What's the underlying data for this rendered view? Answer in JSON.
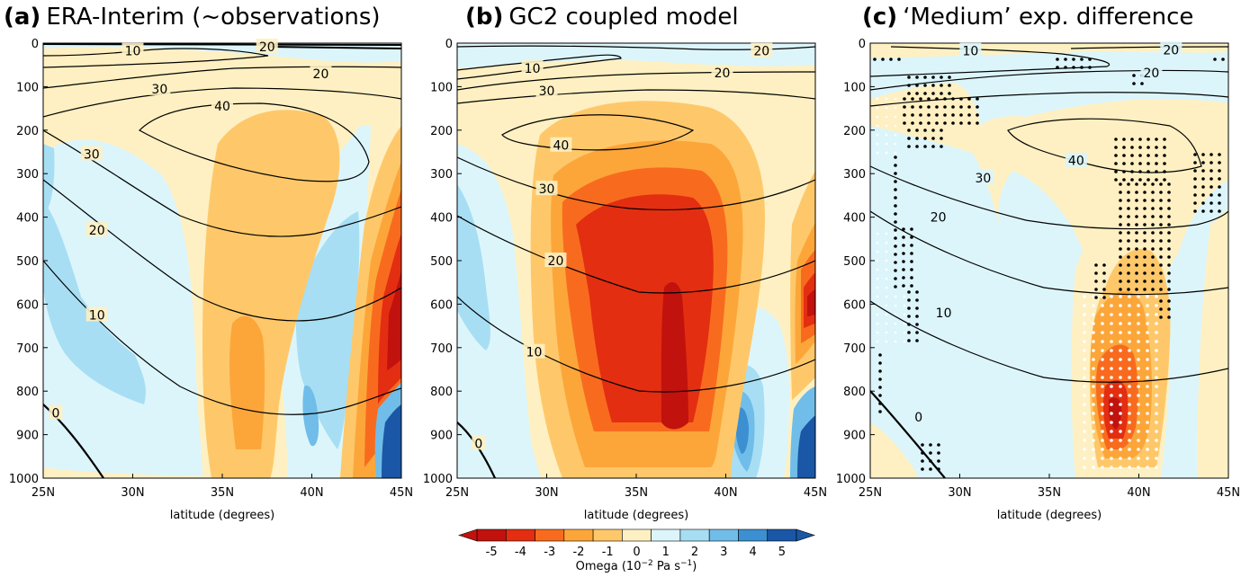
{
  "figure": {
    "panels": [
      {
        "letter": "(a)",
        "title": "ERA-Interim (~observations)",
        "xlabel": "latitude (degrees)"
      },
      {
        "letter": "(b)",
        "title": "GC2 coupled model",
        "xlabel": "latitude (degrees)"
      },
      {
        "letter": "(c)",
        "title": "‘Medium’ exp. difference",
        "xlabel": "latitude (degrees)"
      }
    ],
    "colorbar": {
      "label": "Omega (10",
      "label_exp": "−2",
      "label_unit": " Pa s",
      "label_unit_exp": "−1",
      "label_close": ")"
    },
    "colors": {
      "-5": "#c1120e",
      "-4": "#e32e12",
      "-3": "#f86b1e",
      "-2": "#fca63a",
      "-1": "#fec86a",
      "0": "#fef0c2",
      "1": "#dcf5fb",
      "2": "#a7def3",
      "3": "#70bde9",
      "4": "#3c8fd0",
      "5": "#1a57a6"
    }
  },
  "chart_data": [
    {
      "type": "heatmap",
      "title": "ERA-Interim (~observations)",
      "xlabel": "latitude (degrees)",
      "ylabel": "",
      "x_ticks": [
        "25N",
        "30N",
        "35N",
        "40N",
        "45N"
      ],
      "y_ticks": [
        "0",
        "100",
        "200",
        "300",
        "400",
        "500",
        "600",
        "700",
        "800",
        "900",
        "1000"
      ],
      "xlim": [
        25,
        45
      ],
      "ylim": [
        1000,
        0
      ],
      "filled_variable": "omega",
      "contour_variable_levels": [
        0,
        10,
        20,
        30,
        40
      ],
      "contour_labels": [
        {
          "text": "10",
          "lat": 30.0,
          "p": 18
        },
        {
          "text": "20",
          "lat": 37.5,
          "p": 8
        },
        {
          "text": "20",
          "lat": 40.5,
          "p": 70
        },
        {
          "text": "30",
          "lat": 31.5,
          "p": 105
        },
        {
          "text": "40",
          "lat": 35.0,
          "p": 145
        },
        {
          "text": "30",
          "lat": 27.7,
          "p": 255
        },
        {
          "text": "20",
          "lat": 28.0,
          "p": 430
        },
        {
          "text": "10",
          "lat": 28.0,
          "p": 625
        },
        {
          "text": "0",
          "lat": 25.7,
          "p": 850
        }
      ]
    },
    {
      "type": "heatmap",
      "title": "GC2 coupled model",
      "xlabel": "latitude (degrees)",
      "ylabel": "",
      "x_ticks": [
        "25N",
        "30N",
        "35N",
        "40N",
        "45N"
      ],
      "y_ticks": [
        "0",
        "100",
        "200",
        "300",
        "400",
        "500",
        "600",
        "700",
        "800",
        "900",
        "1000"
      ],
      "xlim": [
        25,
        45
      ],
      "ylim": [
        1000,
        0
      ],
      "filled_variable": "omega",
      "contour_variable_levels": [
        0,
        10,
        20,
        30,
        40
      ],
      "contour_labels": [
        {
          "text": "20",
          "lat": 42.0,
          "p": 18
        },
        {
          "text": "10",
          "lat": 29.2,
          "p": 58
        },
        {
          "text": "20",
          "lat": 39.8,
          "p": 68
        },
        {
          "text": "30",
          "lat": 30.0,
          "p": 110
        },
        {
          "text": "40",
          "lat": 30.8,
          "p": 235
        },
        {
          "text": "30",
          "lat": 30.0,
          "p": 335
        },
        {
          "text": "20",
          "lat": 30.5,
          "p": 500
        },
        {
          "text": "10",
          "lat": 29.3,
          "p": 710
        },
        {
          "text": "0",
          "lat": 26.2,
          "p": 920
        }
      ]
    },
    {
      "type": "heatmap",
      "title": "‘Medium’ exp. difference",
      "xlabel": "latitude (degrees)",
      "ylabel": "",
      "x_ticks": [
        "25N",
        "30N",
        "35N",
        "40N",
        "45N"
      ],
      "y_ticks": [
        "0",
        "100",
        "200",
        "300",
        "400",
        "500",
        "600",
        "700",
        "800",
        "900",
        "1000"
      ],
      "xlim": [
        25,
        45
      ],
      "ylim": [
        1000,
        0
      ],
      "filled_variable": "omega difference",
      "contour_variable_levels": [
        0,
        10,
        20,
        30,
        40
      ],
      "contour_labels": [
        {
          "text": "10",
          "lat": 30.6,
          "p": 18
        },
        {
          "text": "20",
          "lat": 41.8,
          "p": 15
        },
        {
          "text": "20",
          "lat": 40.7,
          "p": 68
        },
        {
          "text": "40",
          "lat": 36.5,
          "p": 270
        },
        {
          "text": "30",
          "lat": 31.3,
          "p": 310
        },
        {
          "text": "20",
          "lat": 28.8,
          "p": 400
        },
        {
          "text": "10",
          "lat": 29.1,
          "p": 620
        },
        {
          "text": "0",
          "lat": 27.7,
          "p": 860
        }
      ]
    },
    {
      "type": "colorbar",
      "levels": [
        "-5",
        "-4",
        "-3",
        "-2",
        "-1",
        "0",
        "1",
        "2",
        "3",
        "4",
        "5"
      ],
      "label": "Omega (10−2 Pa s−1)"
    }
  ]
}
